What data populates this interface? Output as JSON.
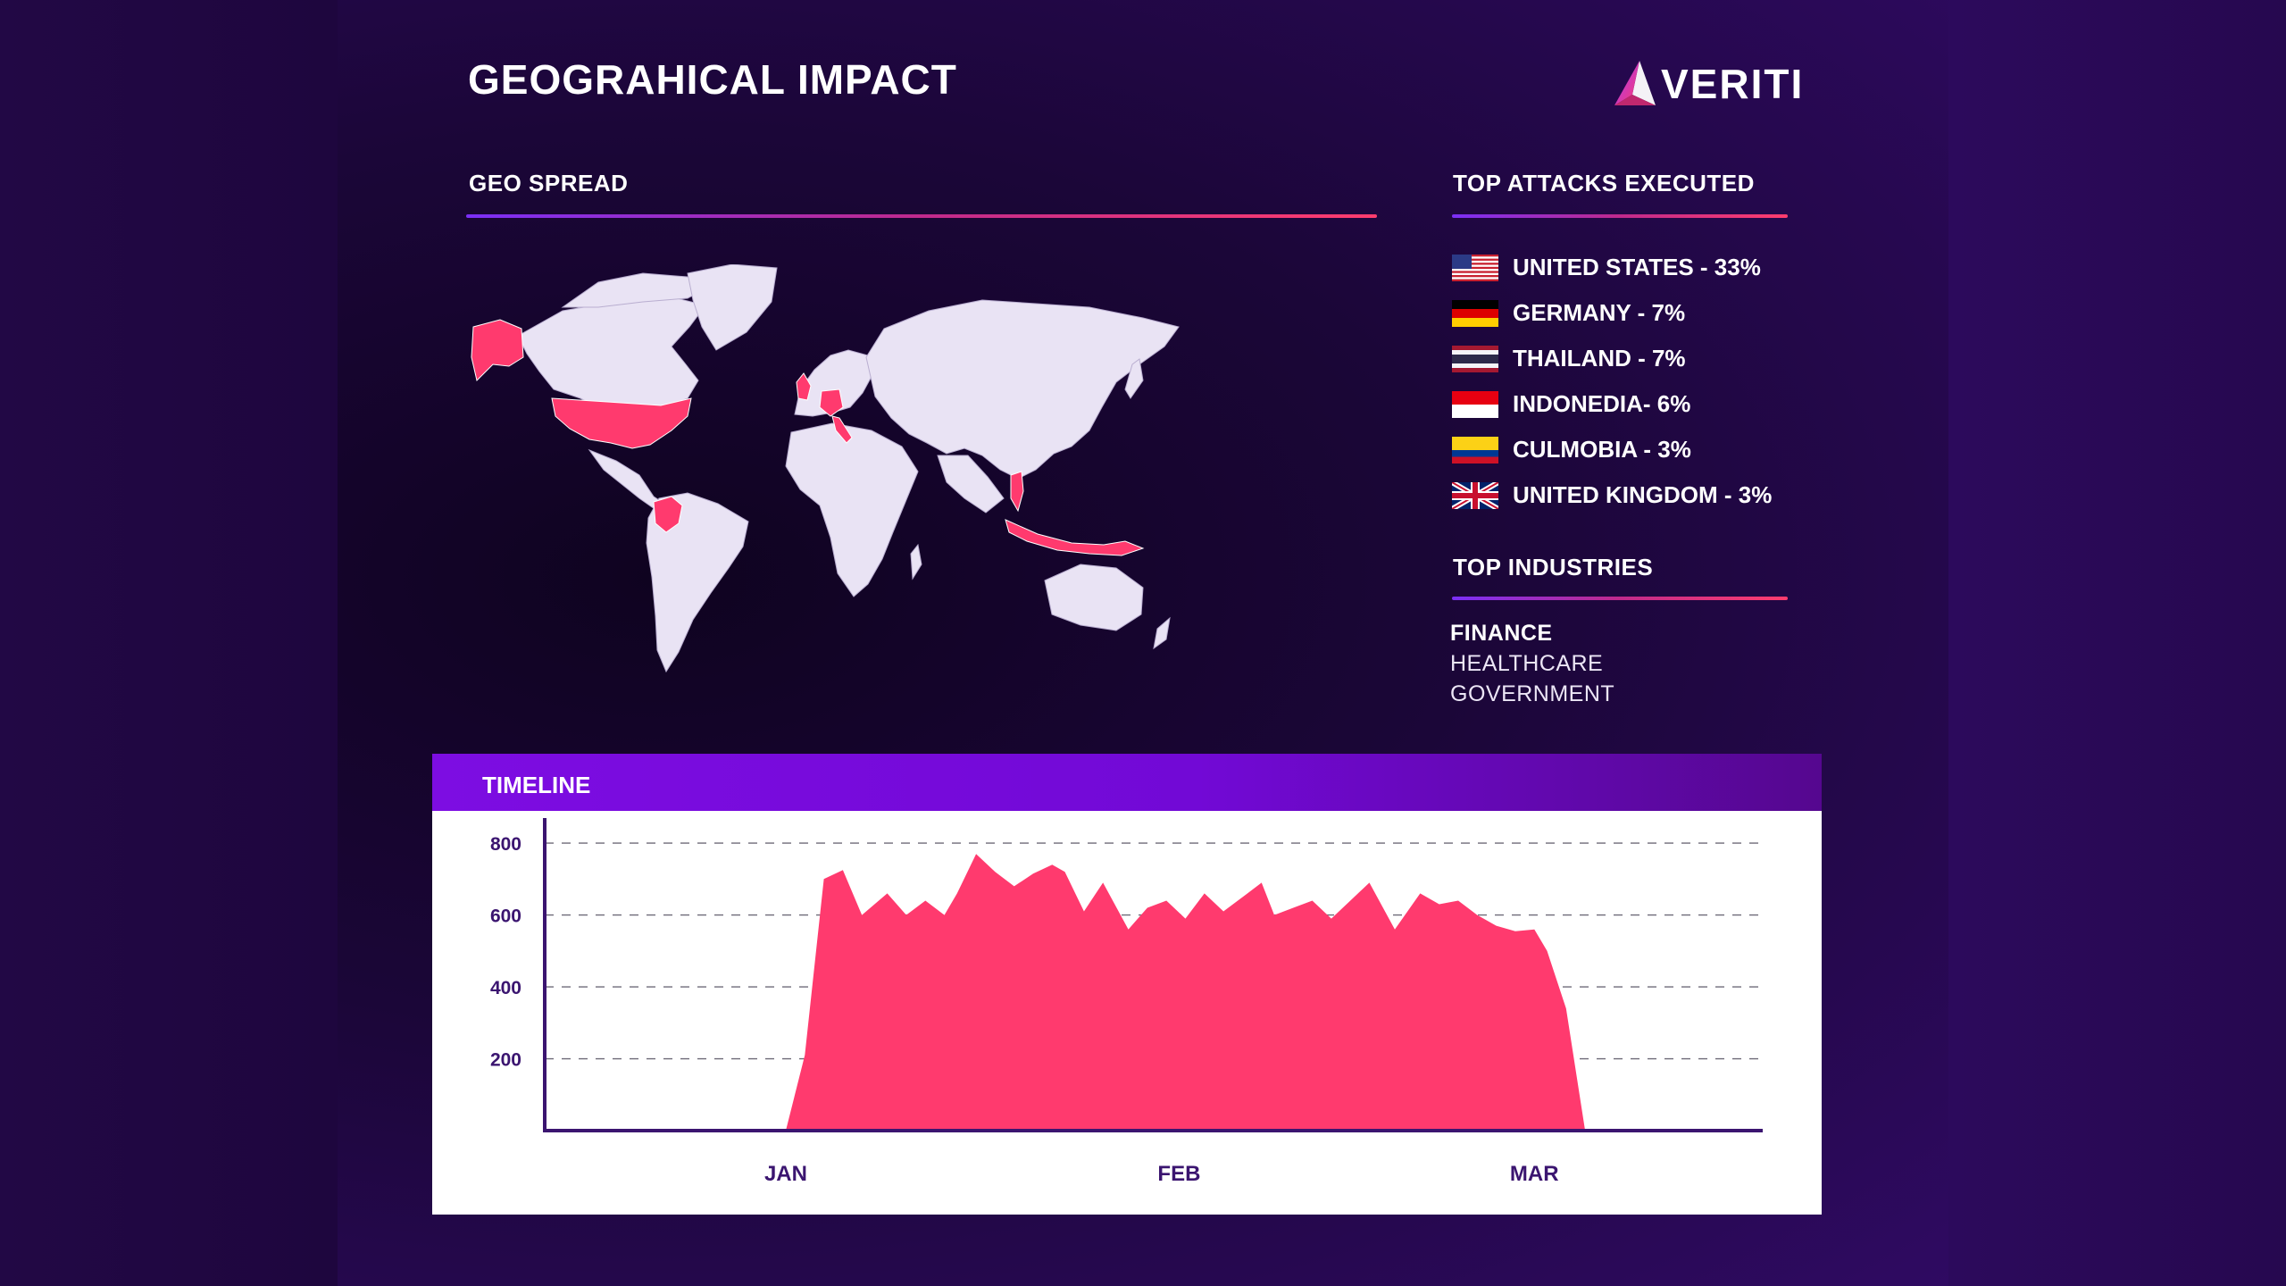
{
  "header": {
    "title": "GEOGRAHICAL IMPACT",
    "logo_text": "VERITI"
  },
  "geo": {
    "label": "GEO SPREAD"
  },
  "attacks": {
    "label": "TOP ATTACKS EXECUTED",
    "items": [
      {
        "text": "UNITED STATES - 33%",
        "flag": "us-flag-icon"
      },
      {
        "text": "GERMANY - 7%",
        "flag": "germany-flag-icon"
      },
      {
        "text": "THAILAND - 7%",
        "flag": "thailand-flag-icon"
      },
      {
        "text": "INDONEDIA- 6%",
        "flag": "indonesia-flag-icon"
      },
      {
        "text": "CULMOBIA - 3%",
        "flag": "colombia-flag-icon"
      },
      {
        "text": "UNITED KINGDOM - 3%",
        "flag": "uk-flag-icon"
      }
    ]
  },
  "industries": {
    "label": "TOP INDUSTRIES",
    "items": [
      "FINANCE",
      "HEALTHCARE",
      "GOVERNMENT"
    ]
  },
  "colors": {
    "accent": "#ff3a6e",
    "purple": "#7a0ee0",
    "axis": "#3b1570",
    "land": "#e9e3f4"
  },
  "chart_data": {
    "type": "area",
    "title": "TIMELINE",
    "xlabel": "",
    "ylabel": "",
    "x_tick_labels": [
      "JAN",
      "FEB",
      "MAR"
    ],
    "x_tick_days": [
      0,
      31,
      59
    ],
    "y_ticks": [
      200,
      400,
      600,
      800
    ],
    "ylim": [
      0,
      840
    ],
    "xlim_days": [
      -19,
      77
    ],
    "grid": "horizontal-dashed",
    "series": [
      {
        "name": "",
        "color": "#ff3a6e",
        "x_days": [
          0,
          1.5,
          3,
          4.5,
          6,
          8,
          9.5,
          11,
          12.5,
          13.5,
          15,
          16.5,
          18,
          19.5,
          21,
          22,
          23.5,
          25,
          27,
          28.5,
          30,
          31.5,
          33,
          34.5,
          36,
          37.5,
          38.5,
          40,
          41.5,
          43,
          44.5,
          46,
          48,
          50,
          51.5,
          53,
          54.5,
          56,
          57.5,
          59,
          60,
          61.5,
          63,
          65,
          66
        ],
        "values": [
          0,
          210,
          700,
          725,
          600,
          660,
          600,
          640,
          600,
          660,
          770,
          720,
          680,
          715,
          740,
          720,
          610,
          690,
          560,
          620,
          640,
          590,
          660,
          610,
          650,
          690,
          600,
          620,
          640,
          590,
          640,
          690,
          560,
          660,
          630,
          640,
          600,
          570,
          555,
          560,
          500,
          340,
          0,
          0,
          0
        ]
      }
    ]
  }
}
